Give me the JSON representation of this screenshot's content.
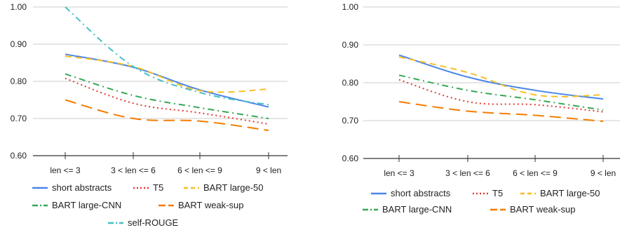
{
  "chart_data": [
    {
      "type": "line",
      "categories": [
        "len <= 3",
        "3 < len <= 6",
        "6 < len <= 9",
        "9 < len"
      ],
      "ylim": [
        0.6,
        1.0
      ],
      "yticks": [
        "0.60",
        "0.70",
        "0.80",
        "0.90",
        "1.00"
      ],
      "grid": true,
      "legend_position": "bottom",
      "series": [
        {
          "name": "short abstracts",
          "values": [
            0.873,
            0.838,
            0.777,
            0.731
          ],
          "color": "#4a86e8",
          "dash": "solid"
        },
        {
          "name": "T5",
          "values": [
            0.808,
            0.741,
            0.715,
            0.685
          ],
          "color": "#e53935",
          "dash": "dotted"
        },
        {
          "name": "BART large-50",
          "values": [
            0.868,
            0.84,
            0.775,
            0.779
          ],
          "color": "#f6bf26",
          "dash": "dashed"
        },
        {
          "name": "BART large-CNN",
          "values": [
            0.82,
            0.762,
            0.729,
            0.7
          ],
          "color": "#34a853",
          "dash": "dashdot"
        },
        {
          "name": "BART weak-sup",
          "values": [
            0.75,
            0.7,
            0.693,
            0.668
          ],
          "color": "#f57c00",
          "dash": "longdash"
        },
        {
          "name": "self-ROUGE",
          "values": [
            1.0,
            0.84,
            0.77,
            0.737
          ],
          "color": "#46bdc6",
          "dash": "dashdot"
        }
      ]
    },
    {
      "type": "line",
      "categories": [
        "len <= 3",
        "3 < len <= 6",
        "6 < len <= 9",
        "9 < len"
      ],
      "ylim": [
        0.6,
        1.0
      ],
      "yticks": [
        "0.60",
        "0.70",
        "0.80",
        "0.90",
        "1.00"
      ],
      "grid": true,
      "legend_position": "bottom",
      "series": [
        {
          "name": "short abstracts",
          "values": [
            0.873,
            0.815,
            0.78,
            0.757
          ],
          "color": "#4a86e8",
          "dash": "solid"
        },
        {
          "name": "T5",
          "values": [
            0.808,
            0.75,
            0.742,
            0.723
          ],
          "color": "#e53935",
          "dash": "dotted"
        },
        {
          "name": "BART large-50",
          "values": [
            0.868,
            0.827,
            0.768,
            0.768
          ],
          "color": "#f6bf26",
          "dash": "dashed"
        },
        {
          "name": "BART large-CNN",
          "values": [
            0.82,
            0.78,
            0.755,
            0.728
          ],
          "color": "#34a853",
          "dash": "dashdot"
        },
        {
          "name": "BART weak-sup",
          "values": [
            0.75,
            0.725,
            0.714,
            0.698
          ],
          "color": "#f57c00",
          "dash": "longdash"
        }
      ]
    }
  ]
}
